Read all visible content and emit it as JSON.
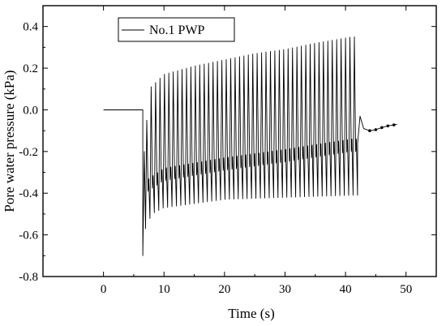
{
  "chart_data": {
    "type": "line",
    "xlabel": "Time (s)",
    "ylabel": "Pore water pressure (kPa)",
    "xlim": [
      -10,
      55
    ],
    "ylim": [
      -0.8,
      0.5
    ],
    "xticks": [
      0,
      10,
      20,
      30,
      40,
      50
    ],
    "yticks": [
      -0.8,
      -0.6,
      -0.4,
      -0.2,
      0.0,
      0.2,
      0.4
    ],
    "ytick_labels": [
      "-0.8",
      "-0.6",
      "-0.4",
      "-0.2",
      "0.0",
      "0.2",
      "0.4"
    ],
    "legend": {
      "position": "top-left",
      "entries": [
        "No.1 PWP"
      ]
    },
    "grid": false,
    "series": [
      {
        "name": "No.1 PWP",
        "color": "#000000",
        "baseline": {
          "x_start": 0,
          "x_end": 6.5,
          "y": 0.0
        },
        "cyclic_loading": {
          "t_start": 6.5,
          "t_end": 42.0,
          "period_s": 0.73,
          "initial_drop_min": -0.7,
          "peak_envelope": [
            {
              "t": 6.8,
              "y": -0.2
            },
            {
              "t": 7.5,
              "y": 0.1
            },
            {
              "t": 10,
              "y": 0.17
            },
            {
              "t": 15,
              "y": 0.21
            },
            {
              "t": 20,
              "y": 0.24
            },
            {
              "t": 25,
              "y": 0.27
            },
            {
              "t": 30,
              "y": 0.29
            },
            {
              "t": 35,
              "y": 0.32
            },
            {
              "t": 41,
              "y": 0.35
            }
          ],
          "trough_envelope": [
            {
              "t": 7,
              "y": -0.57
            },
            {
              "t": 8,
              "y": -0.5
            },
            {
              "t": 10,
              "y": -0.47
            },
            {
              "t": 15,
              "y": -0.45
            },
            {
              "t": 20,
              "y": -0.43
            },
            {
              "t": 30,
              "y": -0.42
            },
            {
              "t": 41,
              "y": -0.41
            }
          ],
          "mid_envelope": [
            {
              "t": 7,
              "y": -0.4
            },
            {
              "t": 10,
              "y": -0.34
            },
            {
              "t": 20,
              "y": -0.29
            },
            {
              "t": 30,
              "y": -0.25
            },
            {
              "t": 41,
              "y": -0.2
            }
          ]
        },
        "dissipation": [
          {
            "x": 42.0,
            "y": -0.16
          },
          {
            "x": 42.4,
            "y": -0.03
          },
          {
            "x": 43.0,
            "y": -0.09
          },
          {
            "x": 44.0,
            "y": -0.1
          },
          {
            "x": 45.0,
            "y": -0.095
          },
          {
            "x": 46.0,
            "y": -0.085
          },
          {
            "x": 47.0,
            "y": -0.077
          },
          {
            "x": 48.5,
            "y": -0.07
          }
        ],
        "dissipation_markers_x": [
          44,
          45,
          46,
          47,
          48
        ]
      }
    ]
  }
}
